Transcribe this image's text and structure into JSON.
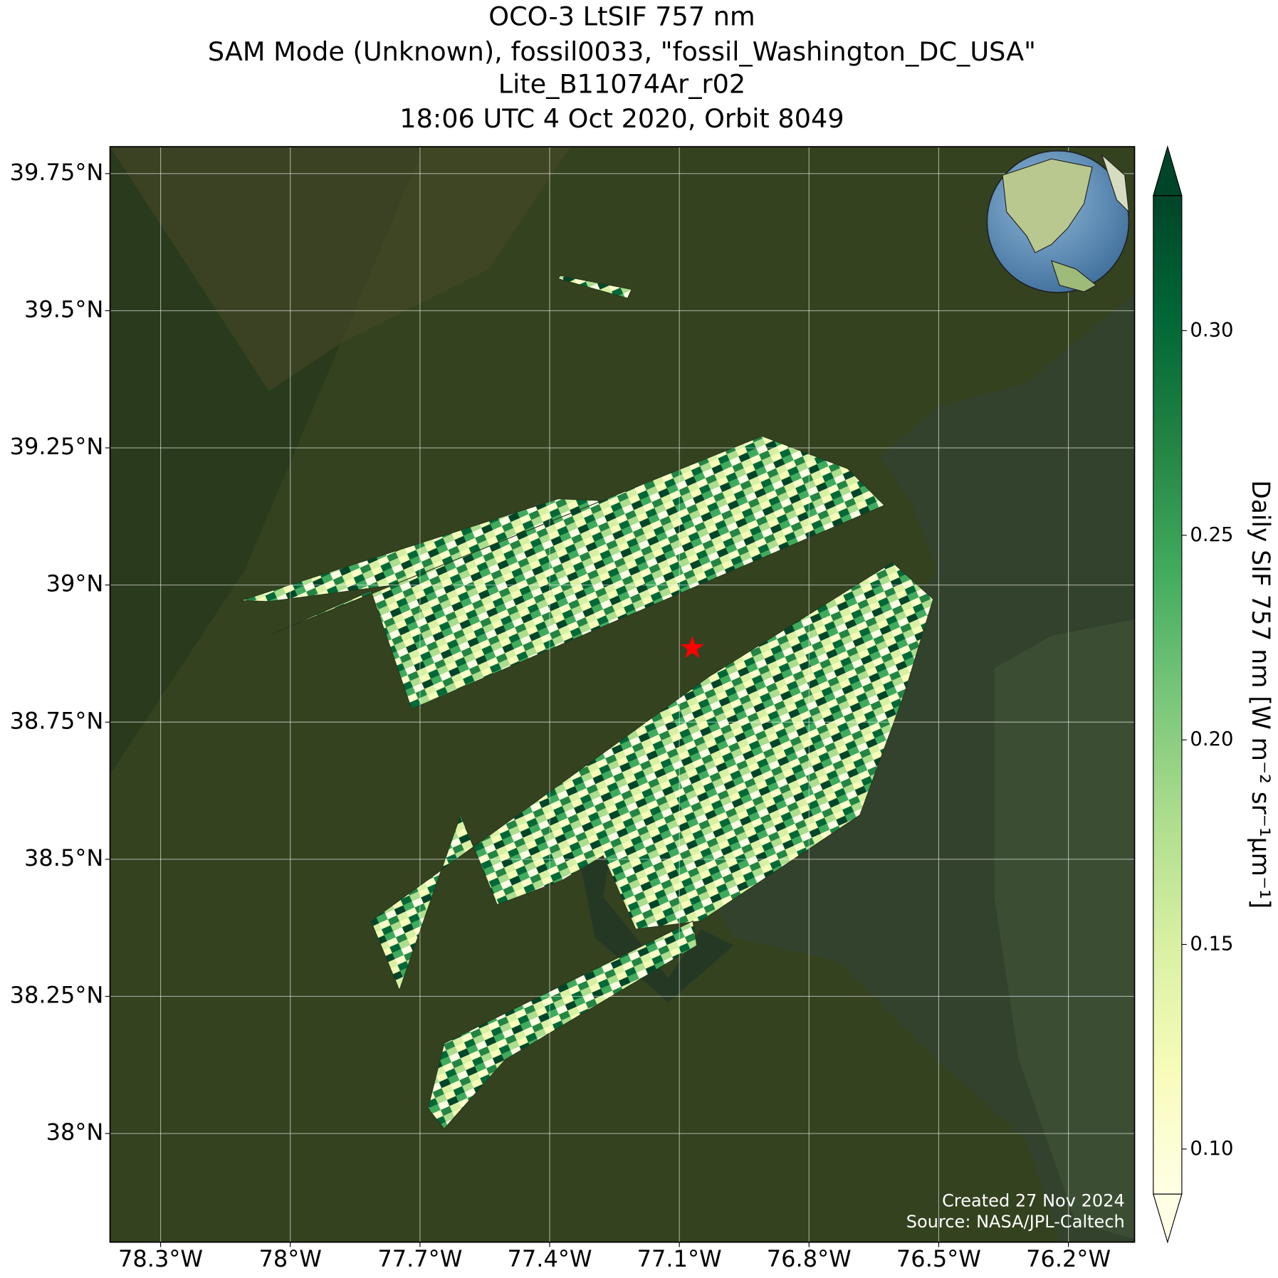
{
  "chart_data": {
    "type": "map",
    "title_lines": [
      "OCO-3 LtSIF 757 nm",
      "SAM Mode (Unknown), fossil0033, \"fossil_Washington_DC_USA\"",
      "Lite_B11074Ar_r02",
      "18:06 UTC 4 Oct 2020, Orbit 8049"
    ],
    "xlim": [
      -78.417,
      -76.047
    ],
    "xticks": [
      {
        "value": -78.3,
        "label": "78.3°W"
      },
      {
        "value": -78.0,
        "label": "78°W"
      },
      {
        "value": -77.7,
        "label": "77.7°W"
      },
      {
        "value": -77.4,
        "label": "77.4°W"
      },
      {
        "value": -77.1,
        "label": "77.1°W"
      },
      {
        "value": -76.8,
        "label": "76.8°W"
      },
      {
        "value": -76.5,
        "label": "76.5°W"
      },
      {
        "value": -76.2,
        "label": "76.2°W"
      }
    ],
    "ylim": [
      37.802,
      39.799
    ],
    "yticks": [
      {
        "value": 38.0,
        "label": "38°N"
      },
      {
        "value": 38.25,
        "label": "38.25°N"
      },
      {
        "value": 38.5,
        "label": "38.5°N"
      },
      {
        "value": 38.75,
        "label": "38.75°N"
      },
      {
        "value": 39.0,
        "label": "39°N"
      },
      {
        "value": 39.25,
        "label": "39.25°N"
      },
      {
        "value": 39.5,
        "label": "39.5°N"
      },
      {
        "value": 39.75,
        "label": "39.75°N"
      }
    ],
    "grid": true,
    "marker": {
      "lon": -77.07,
      "lat": 38.885,
      "color": "#ff0000"
    },
    "colorbar": {
      "label": "Daily SIF 757 nm [W m⁻² sr⁻¹μm⁻¹]",
      "lim": [
        0.089,
        0.333
      ],
      "colormap": "YlGn",
      "extend": "both",
      "ticks": [
        {
          "value": 0.1,
          "label": "0.10"
        },
        {
          "value": 0.15,
          "label": "0.15"
        },
        {
          "value": 0.2,
          "label": "0.20"
        },
        {
          "value": 0.25,
          "label": "0.25"
        },
        {
          "value": 0.3,
          "label": "0.30"
        }
      ]
    },
    "annotations": [
      "Created 27 Nov 2024",
      "Source: NASA/JPL-Caltech"
    ]
  }
}
